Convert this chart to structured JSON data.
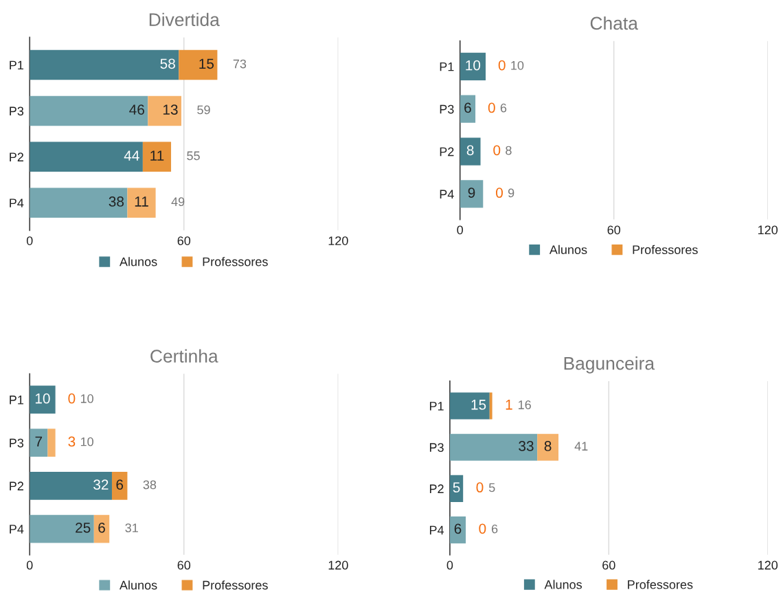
{
  "chart_data": [
    {
      "type": "bar",
      "orientation": "horizontal",
      "stacked": true,
      "title": "Divertida",
      "categories": [
        "P1",
        "P3",
        "P2",
        "P4"
      ],
      "xlim": [
        0,
        120
      ],
      "xticks": [
        0,
        60,
        120
      ],
      "grid": "x",
      "legend": "bottom",
      "data_labels": true,
      "totals": [
        "73",
        "59",
        "55",
        "49"
      ],
      "series": [
        {
          "name": "Alunos",
          "color": "#457f8c",
          "colors": [
            "#457f8c",
            "#76a7b0",
            "#457f8c",
            "#76a7b0"
          ],
          "values": [
            58,
            46,
            44,
            38
          ]
        },
        {
          "name": "Professores",
          "color": "#e8943a",
          "colors": [
            "#e8943a",
            "#f5b26b",
            "#e8943a",
            "#f5b26b"
          ],
          "values": [
            15,
            13,
            11,
            11
          ]
        }
      ]
    },
    {
      "type": "bar",
      "orientation": "horizontal",
      "stacked": true,
      "title": "Chata",
      "categories": [
        "P1",
        "P3",
        "P2",
        "P4"
      ],
      "xlim": [
        0,
        120
      ],
      "xticks": [
        0,
        60,
        120
      ],
      "grid": "x",
      "legend": "bottom",
      "data_labels": true,
      "totals": [
        "10",
        "6",
        "8",
        "9"
      ],
      "series": [
        {
          "name": "Alunos",
          "color": "#457f8c",
          "colors": [
            "#457f8c",
            "#76a7b0",
            "#457f8c",
            "#76a7b0"
          ],
          "values": [
            10,
            6,
            8,
            9
          ]
        },
        {
          "name": "Professores",
          "color": "#e8943a",
          "colors": [
            "#e8943a",
            "#f5b26b",
            "#e8943a",
            "#f5b26b"
          ],
          "values": [
            0,
            0,
            0,
            0
          ]
        }
      ]
    },
    {
      "type": "bar",
      "orientation": "horizontal",
      "stacked": true,
      "title": "Certinha",
      "categories": [
        "P1",
        "P3",
        "P2",
        "P4"
      ],
      "xlim": [
        0,
        120
      ],
      "xticks": [
        0,
        60,
        120
      ],
      "grid": "x",
      "legend": "bottom",
      "data_labels": true,
      "totals": [
        "10",
        "10",
        "38",
        "31"
      ],
      "series": [
        {
          "name": "Alunos",
          "color": "#76a7b0",
          "colors": [
            "#457f8c",
            "#76a7b0",
            "#457f8c",
            "#76a7b0"
          ],
          "values": [
            10,
            7,
            32,
            25
          ]
        },
        {
          "name": "Professores",
          "color": "#e8943a",
          "colors": [
            "#e8943a",
            "#f5b26b",
            "#e8943a",
            "#f5b26b"
          ],
          "values": [
            0,
            3,
            6,
            6
          ]
        }
      ]
    },
    {
      "type": "bar",
      "orientation": "horizontal",
      "stacked": true,
      "title": "Bagunceira",
      "categories": [
        "P1",
        "P3",
        "P2",
        "P4"
      ],
      "xlim": [
        0,
        120
      ],
      "xticks": [
        0,
        60,
        120
      ],
      "grid": "x",
      "legend": "bottom",
      "data_labels": true,
      "totals": [
        "16",
        "41",
        "5",
        "6"
      ],
      "series": [
        {
          "name": "Alunos",
          "color": "#457f8c",
          "colors": [
            "#457f8c",
            "#76a7b0",
            "#457f8c",
            "#76a7b0"
          ],
          "values": [
            15,
            33,
            5,
            6
          ]
        },
        {
          "name": "Professores",
          "color": "#e8943a",
          "colors": [
            "#e8943a",
            "#f5b26b",
            "#e8943a",
            "#f5b26b"
          ],
          "values": [
            1,
            8,
            0,
            0
          ]
        }
      ]
    }
  ]
}
